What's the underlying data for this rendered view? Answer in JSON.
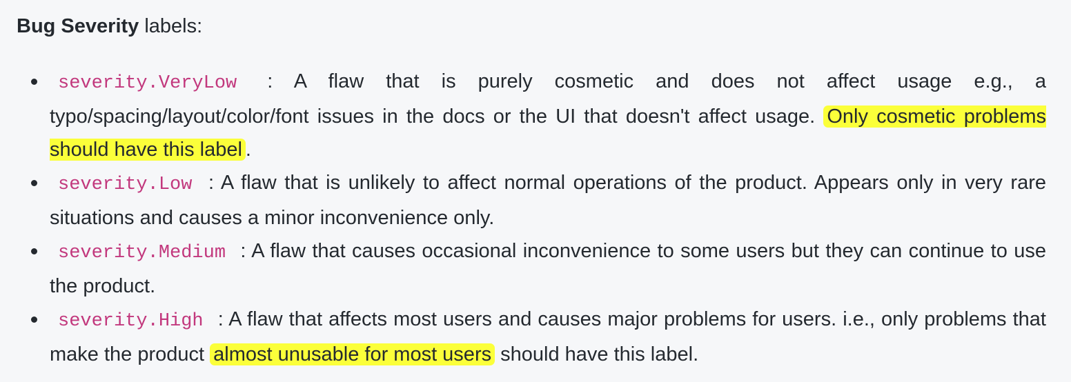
{
  "heading": {
    "bold": "Bug Severity",
    "rest": " labels:"
  },
  "items": [
    {
      "code": "severity.VeryLow",
      "text": " : A flaw that is purely cosmetic and does not affect usage e.g., a typo/spacing/layout/color/font issues in the docs or the UI that doesn't affect usage. ",
      "highlight": "Only cosmetic problems should have this label",
      "after": "."
    },
    {
      "code": "severity.Low",
      "text": " : A flaw that is unlikely to affect normal operations of the product. Appears only in very rare situations and causes a minor inconvenience only."
    },
    {
      "code": "severity.Medium",
      "text": " : A flaw that causes occasional inconvenience to some users but they can continue to use the product."
    },
    {
      "code": "severity.High",
      "text": " : A flaw that affects most users and causes major problems for users. i.e., only problems that make the product ",
      "highlight": "almost unusable for most users",
      "after": " should have this label."
    }
  ],
  "colors": {
    "background": "#f6f7f9",
    "text": "#24292f",
    "code": "#c2387d",
    "highlight": "#fbff3a"
  }
}
